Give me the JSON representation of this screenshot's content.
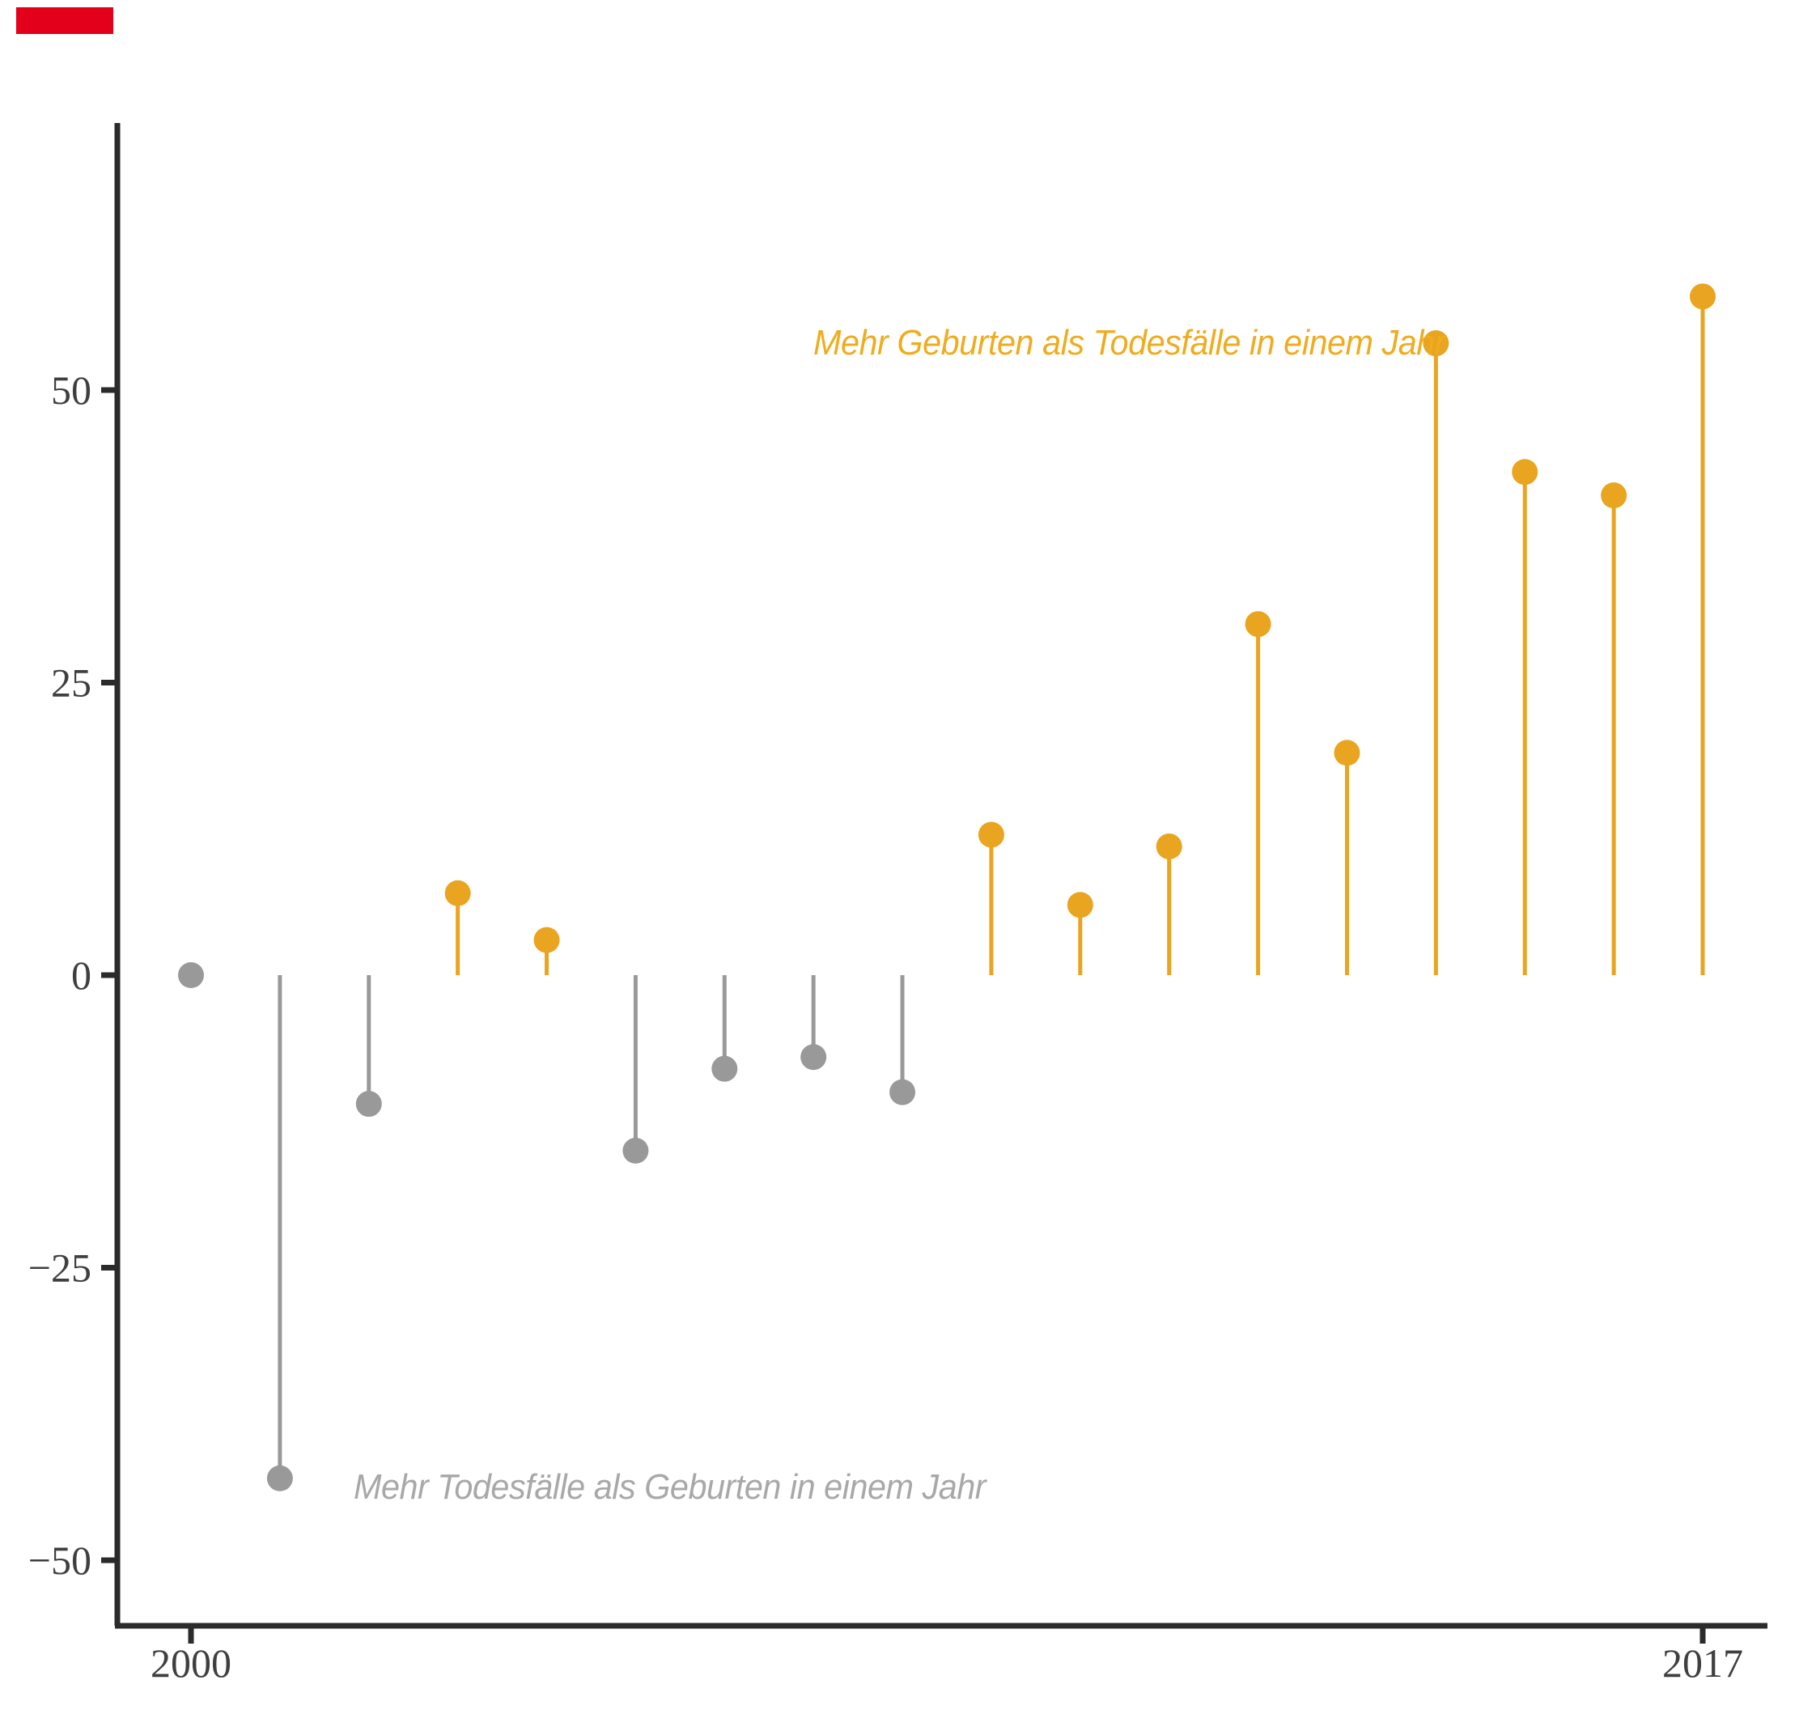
{
  "brand": {
    "color": "#E2001A"
  },
  "chart_data": {
    "type": "lollipop",
    "title": "",
    "xlabel": "",
    "ylabel": "",
    "grid": false,
    "legend": false,
    "x_axis": {
      "ticks": [
        {
          "year": 2000,
          "label": "2000"
        },
        {
          "year": 2017,
          "label": "2017"
        }
      ],
      "range": [
        1999.2,
        2017.7
      ]
    },
    "y_axis": {
      "ticks": [
        {
          "value": 50,
          "label": "50"
        },
        {
          "value": 25,
          "label": "25"
        },
        {
          "value": 0,
          "label": "0"
        },
        {
          "value": -25,
          "label": "−25"
        },
        {
          "value": -50,
          "label": "−50"
        }
      ],
      "range": [
        -55.6,
        72.8
      ]
    },
    "points": [
      {
        "year": 2000,
        "value": 0
      },
      {
        "year": 2001,
        "value": -43
      },
      {
        "year": 2002,
        "value": -11
      },
      {
        "year": 2003,
        "value": 7
      },
      {
        "year": 2004,
        "value": 3
      },
      {
        "year": 2005,
        "value": -15
      },
      {
        "year": 2006,
        "value": -8
      },
      {
        "year": 2007,
        "value": -7
      },
      {
        "year": 2008,
        "value": -10
      },
      {
        "year": 2009,
        "value": 12
      },
      {
        "year": 2010,
        "value": 6
      },
      {
        "year": 2011,
        "value": 11
      },
      {
        "year": 2012,
        "value": 30
      },
      {
        "year": 2013,
        "value": 19
      },
      {
        "year": 2014,
        "value": 54
      },
      {
        "year": 2015,
        "value": 43
      },
      {
        "year": 2016,
        "value": 41
      },
      {
        "year": 2017,
        "value": 58
      }
    ],
    "positive_color": "#E9A420",
    "negative_color": "#999999",
    "axis_color": "#2B2B2B",
    "tick_label_color": "#3F3F3F",
    "annotations": [
      {
        "id": "more-births",
        "text": "Mehr Geburten als Todesfälle in einem Jahr",
        "color": "#EFAC1E",
        "anchor_year": 2007.0,
        "anchor_value": 54.0
      },
      {
        "id": "more-deaths",
        "text": "Mehr Todesfälle als Geburten in einem Jahr",
        "color": "#A8A8A8",
        "anchor_year": 2001.83,
        "anchor_value": -43.8
      }
    ]
  }
}
